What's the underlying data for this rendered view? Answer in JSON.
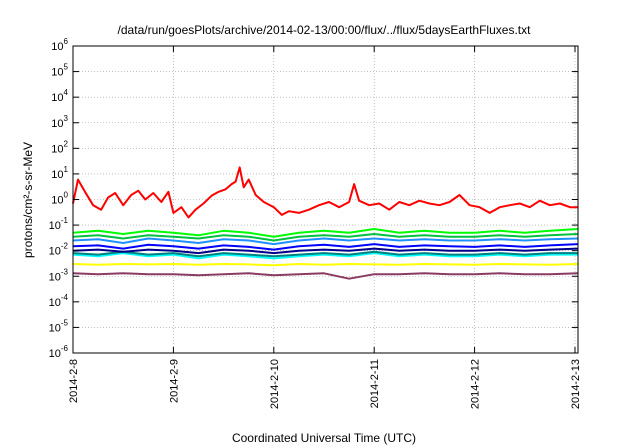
{
  "chart_data": {
    "type": "line",
    "title": "/data/run/goesPlots/archive/2014-02-13/00:00/flux/../flux/5daysEarthFluxes.txt",
    "xlabel": "Coordinated Universal Time (UTC)",
    "ylabel": "protons/cm²-s-sr-MeV",
    "y_scale": "log",
    "ylim": [
      1e-06,
      1000000.0
    ],
    "xlim": [
      0,
      5.03
    ],
    "x_unit": "days since 2014-2-8",
    "grid": true,
    "x_ticks": [
      {
        "value": 0,
        "label": "2014-2-8"
      },
      {
        "value": 1,
        "label": "2014-2-9"
      },
      {
        "value": 2,
        "label": "2014-2-10"
      },
      {
        "value": 3,
        "label": "2014-2-11"
      },
      {
        "value": 4,
        "label": "2014-2-12"
      },
      {
        "value": 5,
        "label": "2014-2-13"
      }
    ],
    "y_ticks": [
      {
        "exp": 6,
        "label": "10",
        "sup": "6"
      },
      {
        "exp": 5,
        "label": "10",
        "sup": "5"
      },
      {
        "exp": 4,
        "label": "10",
        "sup": "4"
      },
      {
        "exp": 3,
        "label": "10",
        "sup": "3"
      },
      {
        "exp": 2,
        "label": "10",
        "sup": "2"
      },
      {
        "exp": 1,
        "label": "10",
        "sup": "1"
      },
      {
        "exp": 0,
        "label": "10",
        "sup": "0"
      },
      {
        "exp": -1,
        "label": "10",
        "sup": "-1"
      },
      {
        "exp": -2,
        "label": "10",
        "sup": "-2"
      },
      {
        "exp": -3,
        "label": "10",
        "sup": "-3"
      },
      {
        "exp": -4,
        "label": "10",
        "sup": "-4"
      },
      {
        "exp": -5,
        "label": "10",
        "sup": "-5"
      },
      {
        "exp": -6,
        "label": "10",
        "sup": "-6"
      }
    ],
    "series": [
      {
        "color": "#ffff00",
        "x": [
          0,
          0.25,
          0.5,
          0.75,
          1.0,
          1.25,
          1.5,
          1.75,
          2.0,
          2.25,
          2.5,
          2.75,
          3.0,
          3.25,
          3.5,
          3.75,
          4.0,
          4.25,
          4.5,
          4.75,
          5.03
        ],
        "values": [
          0.003,
          0.0028,
          0.003,
          0.0029,
          0.003,
          0.0028,
          0.003,
          0.0029,
          0.0027,
          0.003,
          0.0028,
          0.003,
          0.0029,
          0.0028,
          0.003,
          0.0029,
          0.0028,
          0.003,
          0.0029,
          0.0028,
          0.003
        ]
      },
      {
        "color": "#00ffff",
        "x": [
          0,
          0.25,
          0.5,
          0.75,
          1.0,
          1.25,
          1.5,
          1.75,
          2.0,
          2.25,
          2.5,
          2.75,
          3.0,
          3.25,
          3.5,
          3.75,
          4.0,
          4.25,
          4.5,
          4.75,
          5.03
        ],
        "values": [
          0.007,
          0.006,
          0.008,
          0.006,
          0.007,
          0.005,
          0.007,
          0.006,
          0.005,
          0.006,
          0.007,
          0.006,
          0.008,
          0.006,
          0.007,
          0.006,
          0.006,
          0.007,
          0.006,
          0.007,
          0.007
        ]
      },
      {
        "color": "#008080",
        "x": [
          0,
          0.25,
          0.5,
          0.75,
          1.0,
          1.25,
          1.5,
          1.75,
          2.0,
          2.25,
          2.5,
          2.75,
          3.0,
          3.25,
          3.5,
          3.75,
          4.0,
          4.25,
          4.5,
          4.75,
          5.03
        ],
        "values": [
          0.008,
          0.007,
          0.009,
          0.007,
          0.008,
          0.006,
          0.008,
          0.007,
          0.006,
          0.007,
          0.008,
          0.007,
          0.009,
          0.007,
          0.008,
          0.007,
          0.007,
          0.008,
          0.007,
          0.008,
          0.008
        ]
      },
      {
        "color": "#00ff00",
        "x": [
          0,
          0.25,
          0.5,
          0.75,
          1.0,
          1.25,
          1.5,
          1.75,
          2.0,
          2.25,
          2.5,
          2.75,
          3.0,
          3.25,
          3.5,
          3.75,
          4.0,
          4.25,
          4.5,
          4.75,
          5.03
        ],
        "values": [
          0.05,
          0.06,
          0.045,
          0.06,
          0.05,
          0.04,
          0.06,
          0.05,
          0.035,
          0.05,
          0.06,
          0.05,
          0.07,
          0.05,
          0.06,
          0.05,
          0.05,
          0.06,
          0.05,
          0.06,
          0.07
        ]
      },
      {
        "color": "#00c040",
        "x": [
          0,
          0.25,
          0.5,
          0.75,
          1.0,
          1.25,
          1.5,
          1.75,
          2.0,
          2.25,
          2.5,
          2.75,
          3.0,
          3.25,
          3.5,
          3.75,
          4.0,
          4.25,
          4.5,
          4.75,
          5.03
        ],
        "values": [
          0.035,
          0.04,
          0.03,
          0.04,
          0.035,
          0.03,
          0.04,
          0.035,
          0.025,
          0.035,
          0.04,
          0.035,
          0.045,
          0.035,
          0.04,
          0.035,
          0.035,
          0.04,
          0.035,
          0.04,
          0.045
        ]
      },
      {
        "color": "#1e90ff",
        "x": [
          0,
          0.25,
          0.5,
          0.75,
          1.0,
          1.25,
          1.5,
          1.75,
          2.0,
          2.25,
          2.5,
          2.75,
          3.0,
          3.25,
          3.5,
          3.75,
          4.0,
          4.25,
          4.5,
          4.75,
          5.03
        ],
        "values": [
          0.025,
          0.028,
          0.02,
          0.03,
          0.025,
          0.02,
          0.028,
          0.025,
          0.018,
          0.025,
          0.03,
          0.025,
          0.03,
          0.025,
          0.028,
          0.025,
          0.025,
          0.028,
          0.025,
          0.028,
          0.03
        ]
      },
      {
        "color": "#0000ff",
        "x": [
          0,
          0.25,
          0.5,
          0.75,
          1.0,
          1.25,
          1.5,
          1.75,
          2.0,
          2.25,
          2.5,
          2.75,
          3.0,
          3.25,
          3.5,
          3.75,
          4.0,
          4.25,
          4.5,
          4.75,
          5.03
        ],
        "values": [
          0.015,
          0.016,
          0.012,
          0.017,
          0.015,
          0.012,
          0.016,
          0.014,
          0.011,
          0.015,
          0.017,
          0.014,
          0.018,
          0.014,
          0.016,
          0.015,
          0.014,
          0.016,
          0.014,
          0.016,
          0.018
        ]
      },
      {
        "color": "#00008b",
        "x": [
          0,
          0.25,
          0.5,
          0.75,
          1.0,
          1.25,
          1.5,
          1.75,
          2.0,
          2.25,
          2.5,
          2.75,
          3.0,
          3.25,
          3.5,
          3.75,
          4.0,
          4.25,
          4.5,
          4.75,
          5.03
        ],
        "values": [
          0.01,
          0.011,
          0.009,
          0.011,
          0.01,
          0.008,
          0.011,
          0.01,
          0.008,
          0.01,
          0.011,
          0.01,
          0.012,
          0.01,
          0.011,
          0.01,
          0.01,
          0.011,
          0.01,
          0.011,
          0.012
        ]
      },
      {
        "color": "#8b3a62",
        "x": [
          0,
          0.25,
          0.5,
          0.75,
          1.0,
          1.25,
          1.5,
          1.75,
          2.0,
          2.25,
          2.5,
          2.75,
          3.0,
          3.25,
          3.5,
          3.75,
          4.0,
          4.25,
          4.5,
          4.75,
          5.03
        ],
        "values": [
          0.0013,
          0.0012,
          0.0013,
          0.0012,
          0.0012,
          0.0011,
          0.0012,
          0.0013,
          0.0011,
          0.0012,
          0.0013,
          0.0008,
          0.0012,
          0.0012,
          0.0013,
          0.0012,
          0.0012,
          0.0013,
          0.0012,
          0.0012,
          0.0013
        ]
      },
      {
        "color": "#ff0000",
        "x": [
          0,
          0.05,
          0.12,
          0.2,
          0.28,
          0.35,
          0.42,
          0.5,
          0.58,
          0.65,
          0.72,
          0.8,
          0.88,
          0.95,
          1.0,
          1.08,
          1.15,
          1.22,
          1.3,
          1.38,
          1.45,
          1.52,
          1.58,
          1.62,
          1.66,
          1.7,
          1.75,
          1.82,
          1.9,
          2.0,
          2.08,
          2.15,
          2.25,
          2.35,
          2.45,
          2.55,
          2.65,
          2.75,
          2.8,
          2.85,
          2.95,
          3.05,
          3.15,
          3.25,
          3.35,
          3.45,
          3.55,
          3.65,
          3.75,
          3.85,
          3.95,
          4.05,
          4.15,
          4.25,
          4.35,
          4.45,
          4.55,
          4.65,
          4.75,
          4.85,
          4.95,
          5.03
        ],
        "values": [
          0.7,
          6,
          2,
          0.6,
          0.4,
          1.2,
          1.8,
          0.6,
          1.5,
          2.2,
          1.0,
          1.8,
          0.8,
          2.0,
          0.3,
          0.5,
          0.2,
          0.4,
          0.7,
          1.4,
          2.0,
          2.5,
          4,
          5,
          18,
          3,
          6,
          1.5,
          0.8,
          0.5,
          0.25,
          0.35,
          0.3,
          0.4,
          0.6,
          0.8,
          0.5,
          0.8,
          4,
          0.9,
          0.6,
          0.7,
          0.4,
          0.8,
          0.6,
          0.9,
          0.7,
          0.6,
          0.8,
          1.5,
          0.6,
          0.5,
          0.3,
          0.5,
          0.6,
          0.7,
          0.5,
          0.9,
          0.6,
          0.7,
          0.5,
          0.5
        ]
      }
    ]
  }
}
